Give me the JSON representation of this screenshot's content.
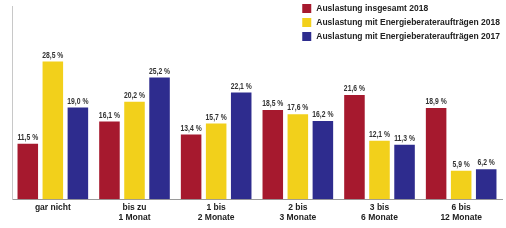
{
  "chart_data": {
    "type": "bar",
    "categories": [
      "gar nicht",
      [
        "bis zu",
        "1 Monat"
      ],
      [
        "1 bis",
        "2 Monate"
      ],
      [
        "2 bis",
        "3 Monate"
      ],
      [
        "3 bis",
        "6 Monate"
      ],
      [
        "6 bis",
        "12 Monate"
      ]
    ],
    "series": [
      {
        "name": "Auslastung insgesamt 2018",
        "color": "#a6192e",
        "values": [
          11.5,
          16.1,
          13.4,
          18.5,
          21.6,
          18.9
        ],
        "value_labels": [
          "11,5 %",
          "16,1 %",
          "13,4 %",
          "18,5 %",
          "21,6 %",
          "18,9 %"
        ]
      },
      {
        "name": "Auslastung mit Energieberateraufträgen 2018",
        "color": "#f2d01b",
        "values": [
          28.5,
          20.2,
          15.7,
          17.6,
          12.1,
          5.9
        ],
        "value_labels": [
          "28,5 %",
          "20,2 %",
          "15,7 %",
          "17,6 %",
          "12,1 %",
          "5,9 %"
        ]
      },
      {
        "name": "Auslastung mit Energieberateraufträgen 2017",
        "color": "#2e2c8e",
        "values": [
          19.0,
          25.2,
          22.1,
          16.2,
          11.3,
          6.2
        ],
        "value_labels": [
          "19,0 %",
          "25,2 %",
          "22,1 %",
          "16,2 %",
          "11,3 %",
          "6,2 %"
        ]
      }
    ],
    "ylim": [
      0,
      40
    ],
    "grid": false,
    "legend": "upper right",
    "data_labels": true,
    "tick_labels": "x"
  }
}
